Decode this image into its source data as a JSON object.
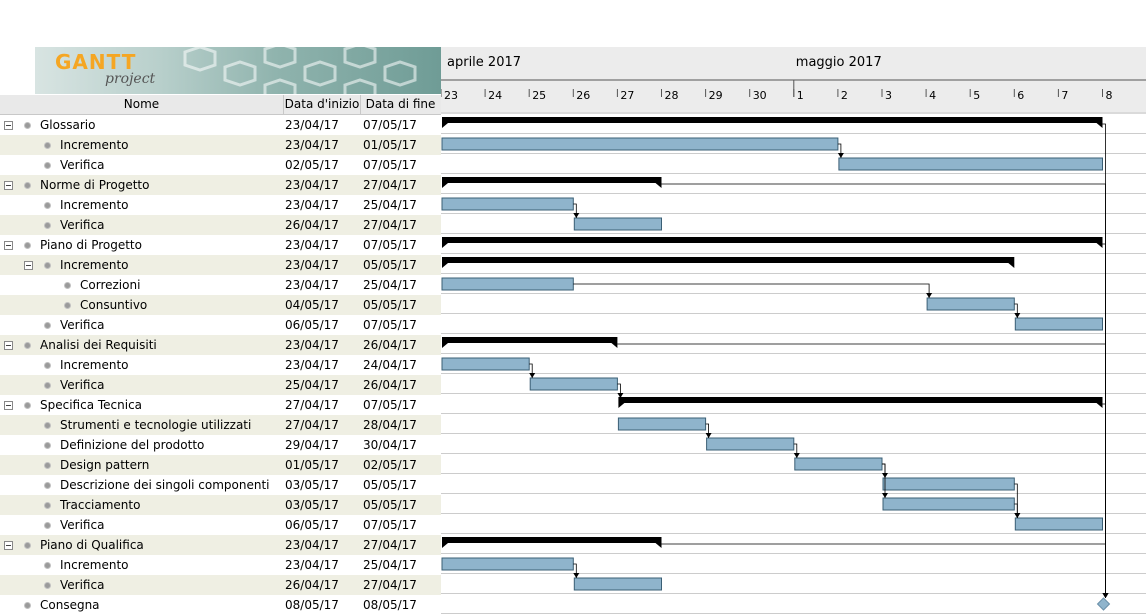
{
  "app": {
    "logo_text": "GANTT",
    "logo_sub": "project"
  },
  "columns": {
    "name": "Nome",
    "start": "Data d'inizio",
    "end": "Data di fine"
  },
  "timeline": {
    "months": [
      {
        "label": "aprile 2017",
        "start_day": 23
      },
      {
        "label": "maggio 2017",
        "start_day": 1
      }
    ],
    "days": [
      "23",
      "24",
      "25",
      "26",
      "27",
      "28",
      "29",
      "30",
      "1",
      "2",
      "3",
      "4",
      "5",
      "6",
      "7",
      "8"
    ]
  },
  "colors": {
    "task_bar": "#8fb4cc",
    "summary_bar": "#000000",
    "milestone": "#8fb4cc",
    "row_alt": "#efefe3"
  },
  "tasks": [
    {
      "name": "Glossario",
      "start": "23/04/17",
      "end": "07/05/17",
      "level": 0,
      "summary": true
    },
    {
      "name": "Incremento",
      "start": "23/04/17",
      "end": "01/05/17",
      "level": 1
    },
    {
      "name": "Verifica",
      "start": "02/05/17",
      "end": "07/05/17",
      "level": 1
    },
    {
      "name": "Norme di Progetto",
      "start": "23/04/17",
      "end": "27/04/17",
      "level": 0,
      "summary": true
    },
    {
      "name": "Incremento",
      "start": "23/04/17",
      "end": "25/04/17",
      "level": 1
    },
    {
      "name": "Verifica",
      "start": "26/04/17",
      "end": "27/04/17",
      "level": 1
    },
    {
      "name": "Piano di Progetto",
      "start": "23/04/17",
      "end": "07/05/17",
      "level": 0,
      "summary": true
    },
    {
      "name": "Incremento",
      "start": "23/04/17",
      "end": "05/05/17",
      "level": 1,
      "summary": true
    },
    {
      "name": "Correzioni",
      "start": "23/04/17",
      "end": "25/04/17",
      "level": 2
    },
    {
      "name": "Consuntivo",
      "start": "04/05/17",
      "end": "05/05/17",
      "level": 2
    },
    {
      "name": "Verifica",
      "start": "06/05/17",
      "end": "07/05/17",
      "level": 1
    },
    {
      "name": "Analisi dei Requisiti",
      "start": "23/04/17",
      "end": "26/04/17",
      "level": 0,
      "summary": true
    },
    {
      "name": "Incremento",
      "start": "23/04/17",
      "end": "24/04/17",
      "level": 1
    },
    {
      "name": "Verifica",
      "start": "25/04/17",
      "end": "26/04/17",
      "level": 1
    },
    {
      "name": "Specifica Tecnica",
      "start": "27/04/17",
      "end": "07/05/17",
      "level": 0,
      "summary": true
    },
    {
      "name": "Strumenti e tecnologie utilizzati",
      "start": "27/04/17",
      "end": "28/04/17",
      "level": 1
    },
    {
      "name": "Definizione del prodotto",
      "start": "29/04/17",
      "end": "30/04/17",
      "level": 1
    },
    {
      "name": "Design pattern",
      "start": "01/05/17",
      "end": "02/05/17",
      "level": 1
    },
    {
      "name": "Descrizione dei singoli componenti",
      "start": "03/05/17",
      "end": "05/05/17",
      "level": 1
    },
    {
      "name": "Tracciamento",
      "start": "03/05/17",
      "end": "05/05/17",
      "level": 1
    },
    {
      "name": "Verifica",
      "start": "06/05/17",
      "end": "07/05/17",
      "level": 1
    },
    {
      "name": "Piano di Qualifica",
      "start": "23/04/17",
      "end": "27/04/17",
      "level": 0,
      "summary": true
    },
    {
      "name": "Incremento",
      "start": "23/04/17",
      "end": "25/04/17",
      "level": 1
    },
    {
      "name": "Verifica",
      "start": "26/04/17",
      "end": "27/04/17",
      "level": 1
    },
    {
      "name": "Consegna",
      "start": "08/05/17",
      "end": "08/05/17",
      "level": 0,
      "milestone": true
    }
  ]
}
